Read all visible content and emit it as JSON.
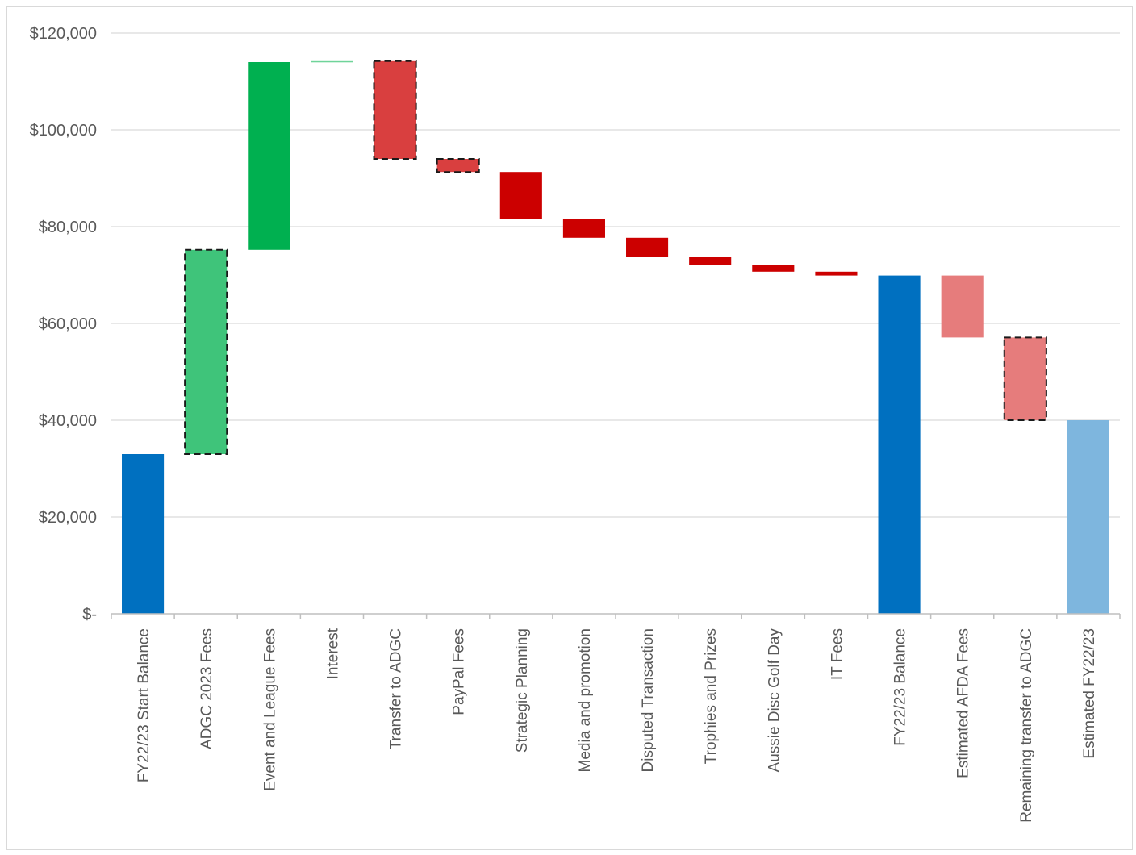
{
  "chart_data": {
    "type": "waterfall",
    "title": "",
    "xlabel": "",
    "ylabel": "",
    "ylim": [
      0,
      120000
    ],
    "yticks": [
      0,
      20000,
      40000,
      60000,
      80000,
      100000,
      120000
    ],
    "ytick_labels": [
      "$-",
      "$20,000",
      "$40,000",
      "$60,000",
      "$80,000",
      "$100,000",
      "$120,000"
    ],
    "grid": true,
    "legend": "none",
    "colors": {
      "total": "#0070c0",
      "total_estimated": "#7eb6de",
      "increase": "#00b050",
      "increase_estimated": "#3fc47a",
      "increase_small": "#6fd49a",
      "decrease": "#cc0000",
      "decrease_dashed": "#d93f3f",
      "decrease_estimated": "#e67c7c",
      "gridline": "#d9d9d9",
      "axis": "#bfbfbf"
    },
    "bars": [
      {
        "label": "FY22/23 Start Balance",
        "start": 0,
        "end": 33000,
        "kind": "total",
        "dashed": false
      },
      {
        "label": "ADGC 2023 Fees",
        "start": 33000,
        "end": 75200,
        "kind": "increase_estimated",
        "dashed": true
      },
      {
        "label": "Event and League Fees",
        "start": 75200,
        "end": 114000,
        "kind": "increase",
        "dashed": false
      },
      {
        "label": "Interest",
        "start": 114000,
        "end": 114200,
        "kind": "increase_small",
        "dashed": false
      },
      {
        "label": "Transfer to ADGC",
        "start": 114200,
        "end": 94000,
        "kind": "decrease_dashed",
        "dashed": true
      },
      {
        "label": "PayPal Fees",
        "start": 94000,
        "end": 91300,
        "kind": "decrease_dashed",
        "dashed": true
      },
      {
        "label": "Strategic Planning",
        "start": 91300,
        "end": 81600,
        "kind": "decrease",
        "dashed": false
      },
      {
        "label": "Media and promotion",
        "start": 81600,
        "end": 77700,
        "kind": "decrease",
        "dashed": false
      },
      {
        "label": "Disputed Transaction",
        "start": 77700,
        "end": 73800,
        "kind": "decrease",
        "dashed": false
      },
      {
        "label": "Trophies and Prizes",
        "start": 73800,
        "end": 72100,
        "kind": "decrease",
        "dashed": false
      },
      {
        "label": "Aussie Disc Golf Day",
        "start": 72100,
        "end": 70700,
        "kind": "decrease",
        "dashed": false
      },
      {
        "label": "IT Fees",
        "start": 70700,
        "end": 69900,
        "kind": "decrease",
        "dashed": false
      },
      {
        "label": "FY22/23 Balance",
        "start": 0,
        "end": 69900,
        "kind": "total",
        "dashed": false
      },
      {
        "label": "Estimated AFDA Fees",
        "start": 69900,
        "end": 57100,
        "kind": "decrease_estimated",
        "dashed": false
      },
      {
        "label": "Remaining transfer to ADGC",
        "start": 57100,
        "end": 40000,
        "kind": "decrease_estimated",
        "dashed": true
      },
      {
        "label": "Estimated FY22/23",
        "start": 0,
        "end": 40000,
        "kind": "total_estimated",
        "dashed": false
      }
    ]
  }
}
